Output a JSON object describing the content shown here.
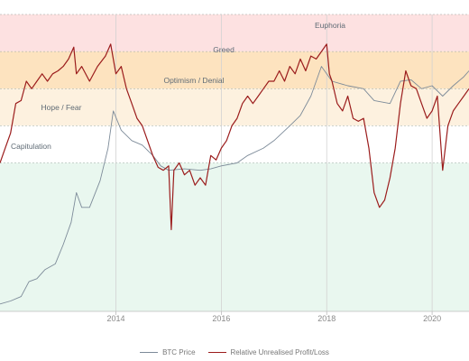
{
  "chart_data": {
    "type": "line",
    "title": "",
    "xlabel": "",
    "ylabel": "",
    "x_ticks": [
      "2014",
      "2016",
      "2018",
      "2020"
    ],
    "grid": true,
    "legend_position": "bottom-center",
    "zones": [
      {
        "name": "Euphoria",
        "range": [
          0.75,
          1.0
        ],
        "color": "#fde1e1"
      },
      {
        "name": "Greed",
        "range": [
          0.5,
          0.75
        ],
        "color": "#fde3bf"
      },
      {
        "name": "Optimism / Denial",
        "range": [
          0.25,
          0.5
        ],
        "color": "#fdf1df"
      },
      {
        "name": "Hope / Fear",
        "range": [
          0.0,
          0.25
        ],
        "color": "#ffffff"
      },
      {
        "name": "Capitulation",
        "range": [
          -1.0,
          0.0
        ],
        "color": "#e9f7ef"
      }
    ],
    "series": [
      {
        "name": "BTC Price",
        "color": "#7d8b99",
        "points": [
          [
            2011.8,
            -0.95
          ],
          [
            2012.0,
            -0.93
          ],
          [
            2012.2,
            -0.9
          ],
          [
            2012.35,
            -0.8
          ],
          [
            2012.5,
            -0.78
          ],
          [
            2012.65,
            -0.72
          ],
          [
            2012.85,
            -0.68
          ],
          [
            2013.0,
            -0.55
          ],
          [
            2013.15,
            -0.4
          ],
          [
            2013.25,
            -0.2
          ],
          [
            2013.35,
            -0.3
          ],
          [
            2013.5,
            -0.3
          ],
          [
            2013.7,
            -0.12
          ],
          [
            2013.85,
            0.1
          ],
          [
            2013.95,
            0.35
          ],
          [
            2014.1,
            0.22
          ],
          [
            2014.3,
            0.15
          ],
          [
            2014.5,
            0.12
          ],
          [
            2014.7,
            0.05
          ],
          [
            2014.85,
            -0.02
          ],
          [
            2015.0,
            -0.05
          ],
          [
            2015.3,
            -0.04
          ],
          [
            2015.6,
            -0.05
          ],
          [
            2015.8,
            -0.04
          ],
          [
            2016.0,
            -0.02
          ],
          [
            2016.3,
            0.0
          ],
          [
            2016.5,
            0.05
          ],
          [
            2016.8,
            0.1
          ],
          [
            2017.0,
            0.15
          ],
          [
            2017.3,
            0.25
          ],
          [
            2017.5,
            0.32
          ],
          [
            2017.7,
            0.45
          ],
          [
            2017.9,
            0.65
          ],
          [
            2018.0,
            0.6
          ],
          [
            2018.1,
            0.55
          ],
          [
            2018.4,
            0.52
          ],
          [
            2018.7,
            0.5
          ],
          [
            2018.9,
            0.42
          ],
          [
            2019.2,
            0.4
          ],
          [
            2019.4,
            0.55
          ],
          [
            2019.6,
            0.56
          ],
          [
            2019.8,
            0.5
          ],
          [
            2020.0,
            0.52
          ],
          [
            2020.2,
            0.45
          ],
          [
            2020.4,
            0.52
          ],
          [
            2020.6,
            0.58
          ],
          [
            2020.7,
            0.62
          ]
        ]
      },
      {
        "name": "Relative Unrealised Profit/Loss",
        "color": "#9b1c1c",
        "points": [
          [
            2011.8,
            0.0
          ],
          [
            2011.9,
            0.1
          ],
          [
            2012.0,
            0.2
          ],
          [
            2012.1,
            0.4
          ],
          [
            2012.2,
            0.42
          ],
          [
            2012.3,
            0.55
          ],
          [
            2012.4,
            0.5
          ],
          [
            2012.5,
            0.55
          ],
          [
            2012.6,
            0.6
          ],
          [
            2012.7,
            0.55
          ],
          [
            2012.8,
            0.6
          ],
          [
            2012.9,
            0.62
          ],
          [
            2013.0,
            0.65
          ],
          [
            2013.1,
            0.7
          ],
          [
            2013.2,
            0.78
          ],
          [
            2013.25,
            0.6
          ],
          [
            2013.35,
            0.65
          ],
          [
            2013.5,
            0.55
          ],
          [
            2013.65,
            0.65
          ],
          [
            2013.8,
            0.72
          ],
          [
            2013.9,
            0.8
          ],
          [
            2014.0,
            0.6
          ],
          [
            2014.1,
            0.65
          ],
          [
            2014.2,
            0.5
          ],
          [
            2014.3,
            0.4
          ],
          [
            2014.4,
            0.3
          ],
          [
            2014.5,
            0.25
          ],
          [
            2014.6,
            0.15
          ],
          [
            2014.7,
            0.05
          ],
          [
            2014.8,
            -0.03
          ],
          [
            2014.9,
            -0.05
          ],
          [
            2015.0,
            -0.02
          ],
          [
            2015.05,
            -0.45
          ],
          [
            2015.1,
            -0.05
          ],
          [
            2015.2,
            0.0
          ],
          [
            2015.3,
            -0.08
          ],
          [
            2015.4,
            -0.05
          ],
          [
            2015.5,
            -0.15
          ],
          [
            2015.6,
            -0.1
          ],
          [
            2015.7,
            -0.15
          ],
          [
            2015.75,
            -0.05
          ],
          [
            2015.8,
            0.05
          ],
          [
            2015.9,
            0.02
          ],
          [
            2016.0,
            0.1
          ],
          [
            2016.1,
            0.15
          ],
          [
            2016.2,
            0.25
          ],
          [
            2016.3,
            0.3
          ],
          [
            2016.4,
            0.4
          ],
          [
            2016.5,
            0.45
          ],
          [
            2016.6,
            0.4
          ],
          [
            2016.7,
            0.45
          ],
          [
            2016.8,
            0.5
          ],
          [
            2016.9,
            0.55
          ],
          [
            2017.0,
            0.55
          ],
          [
            2017.1,
            0.62
          ],
          [
            2017.2,
            0.55
          ],
          [
            2017.3,
            0.65
          ],
          [
            2017.4,
            0.6
          ],
          [
            2017.5,
            0.7
          ],
          [
            2017.6,
            0.62
          ],
          [
            2017.7,
            0.72
          ],
          [
            2017.8,
            0.7
          ],
          [
            2017.9,
            0.75
          ],
          [
            2018.0,
            0.8
          ],
          [
            2018.05,
            0.6
          ],
          [
            2018.1,
            0.55
          ],
          [
            2018.2,
            0.4
          ],
          [
            2018.3,
            0.35
          ],
          [
            2018.4,
            0.45
          ],
          [
            2018.5,
            0.3
          ],
          [
            2018.6,
            0.28
          ],
          [
            2018.7,
            0.3
          ],
          [
            2018.8,
            0.1
          ],
          [
            2018.9,
            -0.2
          ],
          [
            2019.0,
            -0.3
          ],
          [
            2019.1,
            -0.25
          ],
          [
            2019.2,
            -0.1
          ],
          [
            2019.3,
            0.1
          ],
          [
            2019.4,
            0.4
          ],
          [
            2019.5,
            0.62
          ],
          [
            2019.6,
            0.52
          ],
          [
            2019.7,
            0.5
          ],
          [
            2019.8,
            0.4
          ],
          [
            2019.9,
            0.3
          ],
          [
            2020.0,
            0.35
          ],
          [
            2020.1,
            0.45
          ],
          [
            2020.2,
            -0.05
          ],
          [
            2020.3,
            0.25
          ],
          [
            2020.4,
            0.35
          ],
          [
            2020.5,
            0.4
          ],
          [
            2020.6,
            0.45
          ],
          [
            2020.7,
            0.5
          ]
        ]
      }
    ]
  }
}
